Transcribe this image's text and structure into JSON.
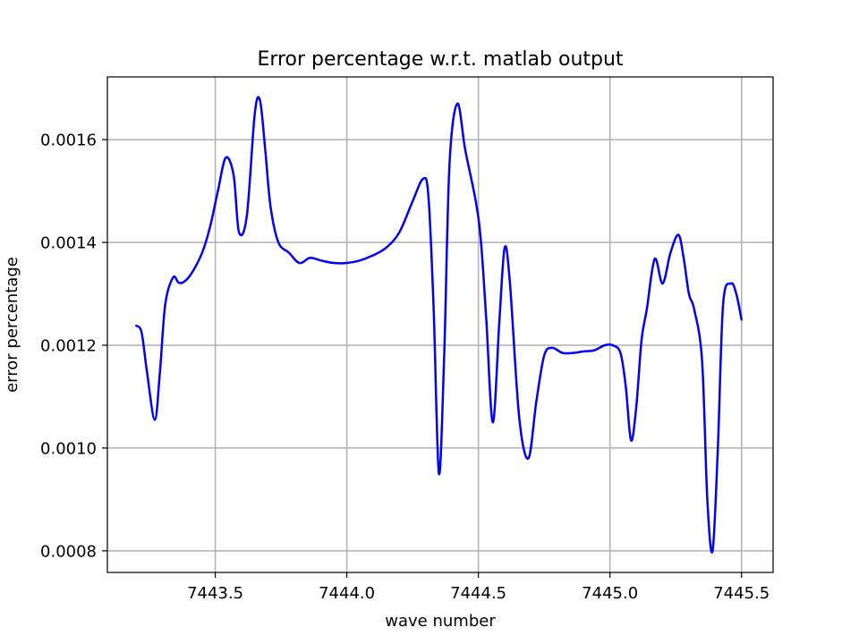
{
  "chart_data": {
    "type": "line",
    "title": "Error percentage w.r.t. matlab output",
    "xlabel": "wave number",
    "ylabel": "error percentage",
    "xlim": [
      7443.09,
      7445.62
    ],
    "ylim": [
      0.000758,
      0.001722
    ],
    "xticks": [
      7443.5,
      7444.0,
      7444.5,
      7445.0,
      7445.5
    ],
    "xtick_labels": [
      "7443.5",
      "7444.0",
      "7444.5",
      "7445.0",
      "7445.5"
    ],
    "yticks": [
      0.0008,
      0.001,
      0.0012,
      0.0014,
      0.0016
    ],
    "ytick_labels": [
      "0.0008",
      "0.0010",
      "0.0012",
      "0.0014",
      "0.0016"
    ],
    "grid": true,
    "series": [
      {
        "color": "#0000ff",
        "x": [
          7443.2,
          7443.22,
          7443.24,
          7443.27,
          7443.29,
          7443.31,
          7443.34,
          7443.36,
          7443.38,
          7443.41,
          7443.45,
          7443.48,
          7443.51,
          7443.54,
          7443.57,
          7443.59,
          7443.62,
          7443.65,
          7443.67,
          7443.69,
          7443.71,
          7443.74,
          7443.78,
          7443.82,
          7443.86,
          7443.9,
          7443.95,
          7444.0,
          7444.05,
          7444.1,
          7444.15,
          7444.2,
          7444.25,
          7444.29,
          7444.31,
          7444.33,
          7444.35,
          7444.37,
          7444.39,
          7444.42,
          7444.45,
          7444.49,
          7444.51,
          7444.53,
          7444.555,
          7444.58,
          7444.6,
          7444.62,
          7444.655,
          7444.69,
          7444.72,
          7444.75,
          7444.78,
          7444.82,
          7444.86,
          7444.9,
          7444.94,
          7444.98,
          7445.01,
          7445.04,
          7445.06,
          7445.08,
          7445.1,
          7445.12,
          7445.14,
          7445.17,
          7445.2,
          7445.23,
          7445.26,
          7445.28,
          7445.3,
          7445.32,
          7445.35,
          7445.37,
          7445.39,
          7445.41,
          7445.43,
          7445.46,
          7445.48,
          7445.5
        ],
        "y": [
          0.001238,
          0.001225,
          0.00115,
          0.001055,
          0.00115,
          0.00128,
          0.001332,
          0.001322,
          0.001323,
          0.00134,
          0.00138,
          0.00143,
          0.0015,
          0.001565,
          0.00153,
          0.00142,
          0.001452,
          0.00165,
          0.001676,
          0.00158,
          0.00147,
          0.0014,
          0.00138,
          0.00136,
          0.00137,
          0.001365,
          0.00136,
          0.00136,
          0.001365,
          0.001375,
          0.00139,
          0.00142,
          0.00148,
          0.001524,
          0.00149,
          0.00127,
          0.00095,
          0.00118,
          0.00155,
          0.00167,
          0.00158,
          0.00148,
          0.0014,
          0.00125,
          0.00105,
          0.00125,
          0.00139,
          0.00132,
          0.00106,
          0.00098,
          0.00109,
          0.00118,
          0.001195,
          0.001185,
          0.001185,
          0.001188,
          0.00119,
          0.0012,
          0.0012,
          0.001185,
          0.00112,
          0.001015,
          0.00108,
          0.00121,
          0.00127,
          0.001368,
          0.00132,
          0.00138,
          0.001415,
          0.00137,
          0.0013,
          0.00127,
          0.00117,
          0.0009,
          0.0008,
          0.001,
          0.00128,
          0.00132,
          0.0013,
          0.00125
        ]
      }
    ]
  }
}
